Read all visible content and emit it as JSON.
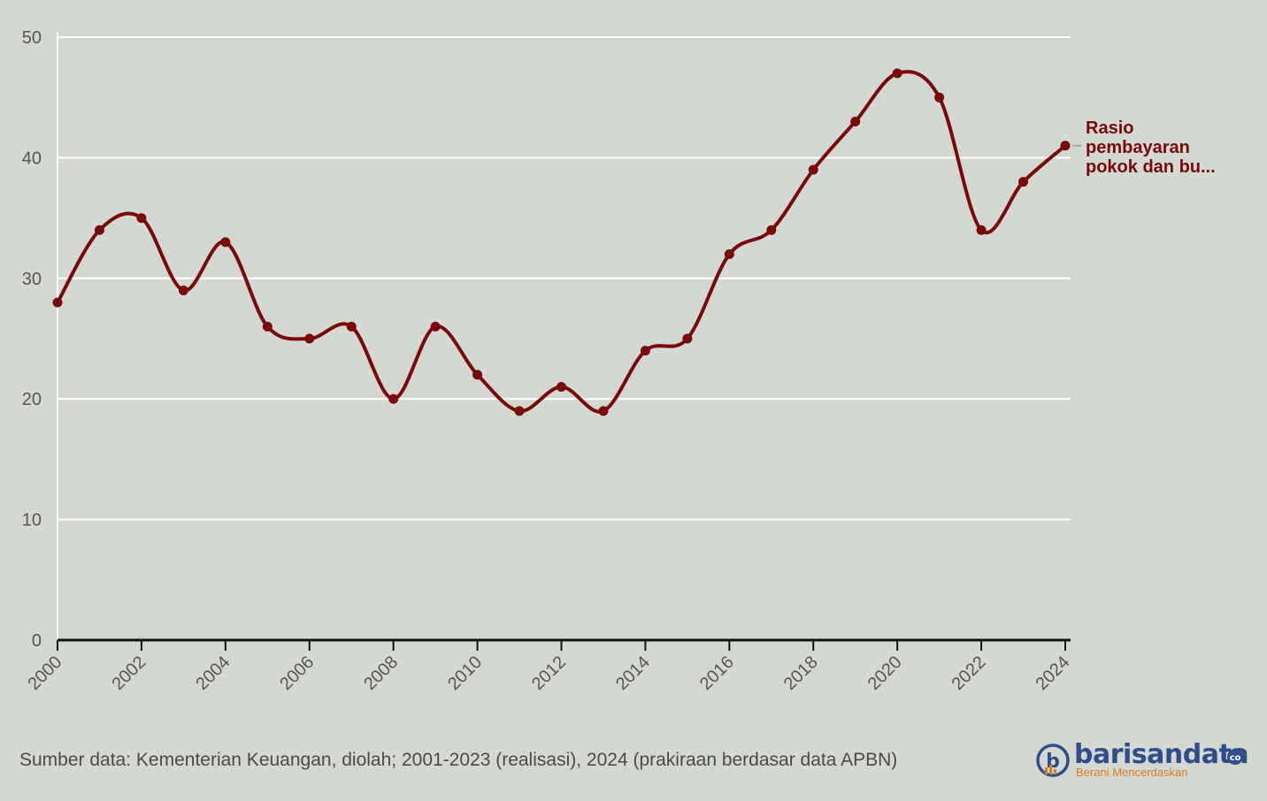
{
  "chart_data": {
    "type": "line",
    "title": "",
    "xlabel": "",
    "ylabel": "",
    "x": [
      2000,
      2001,
      2002,
      2003,
      2004,
      2005,
      2006,
      2007,
      2008,
      2009,
      2010,
      2011,
      2012,
      2013,
      2014,
      2015,
      2016,
      2017,
      2018,
      2019,
      2020,
      2021,
      2022,
      2023,
      2024
    ],
    "series": [
      {
        "name": "Rasio pembayaran pokok dan bu...",
        "color": "#7a0a0a",
        "values": [
          28,
          34,
          35,
          29,
          33,
          26,
          25,
          26,
          20,
          26,
          22,
          19,
          21,
          19,
          24,
          25,
          32,
          34,
          39,
          43,
          47,
          45,
          34,
          38,
          41
        ]
      }
    ],
    "xticks": [
      "2000",
      "2002",
      "2004",
      "2006",
      "2008",
      "2010",
      "2012",
      "2014",
      "2016",
      "2018",
      "2020",
      "2022",
      "2024"
    ],
    "yticks": [
      "0",
      "10",
      "20",
      "30",
      "40",
      "50"
    ],
    "ylim": [
      0,
      50
    ],
    "xlim": [
      2000,
      2024
    ],
    "grid": true,
    "line_style": "smooth with point markers",
    "series_label_lines": [
      "Rasio",
      "pembayaran",
      "pokok dan bu..."
    ]
  },
  "footer": {
    "source": "Sumber data: Kementerian Keuangan, diolah; 2001-2023 (realisasi), 2024 (prakiraan berdasar data APBN)"
  },
  "logo": {
    "name": "barisandata",
    "tagline": "Berani Mencerdaskan",
    "suffix": "co",
    "colors": {
      "primary": "#2f4d8a",
      "accent": "#e07a1f"
    }
  },
  "colors": {
    "background": "#d3d9d1",
    "grid": "#ffffff",
    "axis": "#111111",
    "series": "#7a0a0a"
  }
}
